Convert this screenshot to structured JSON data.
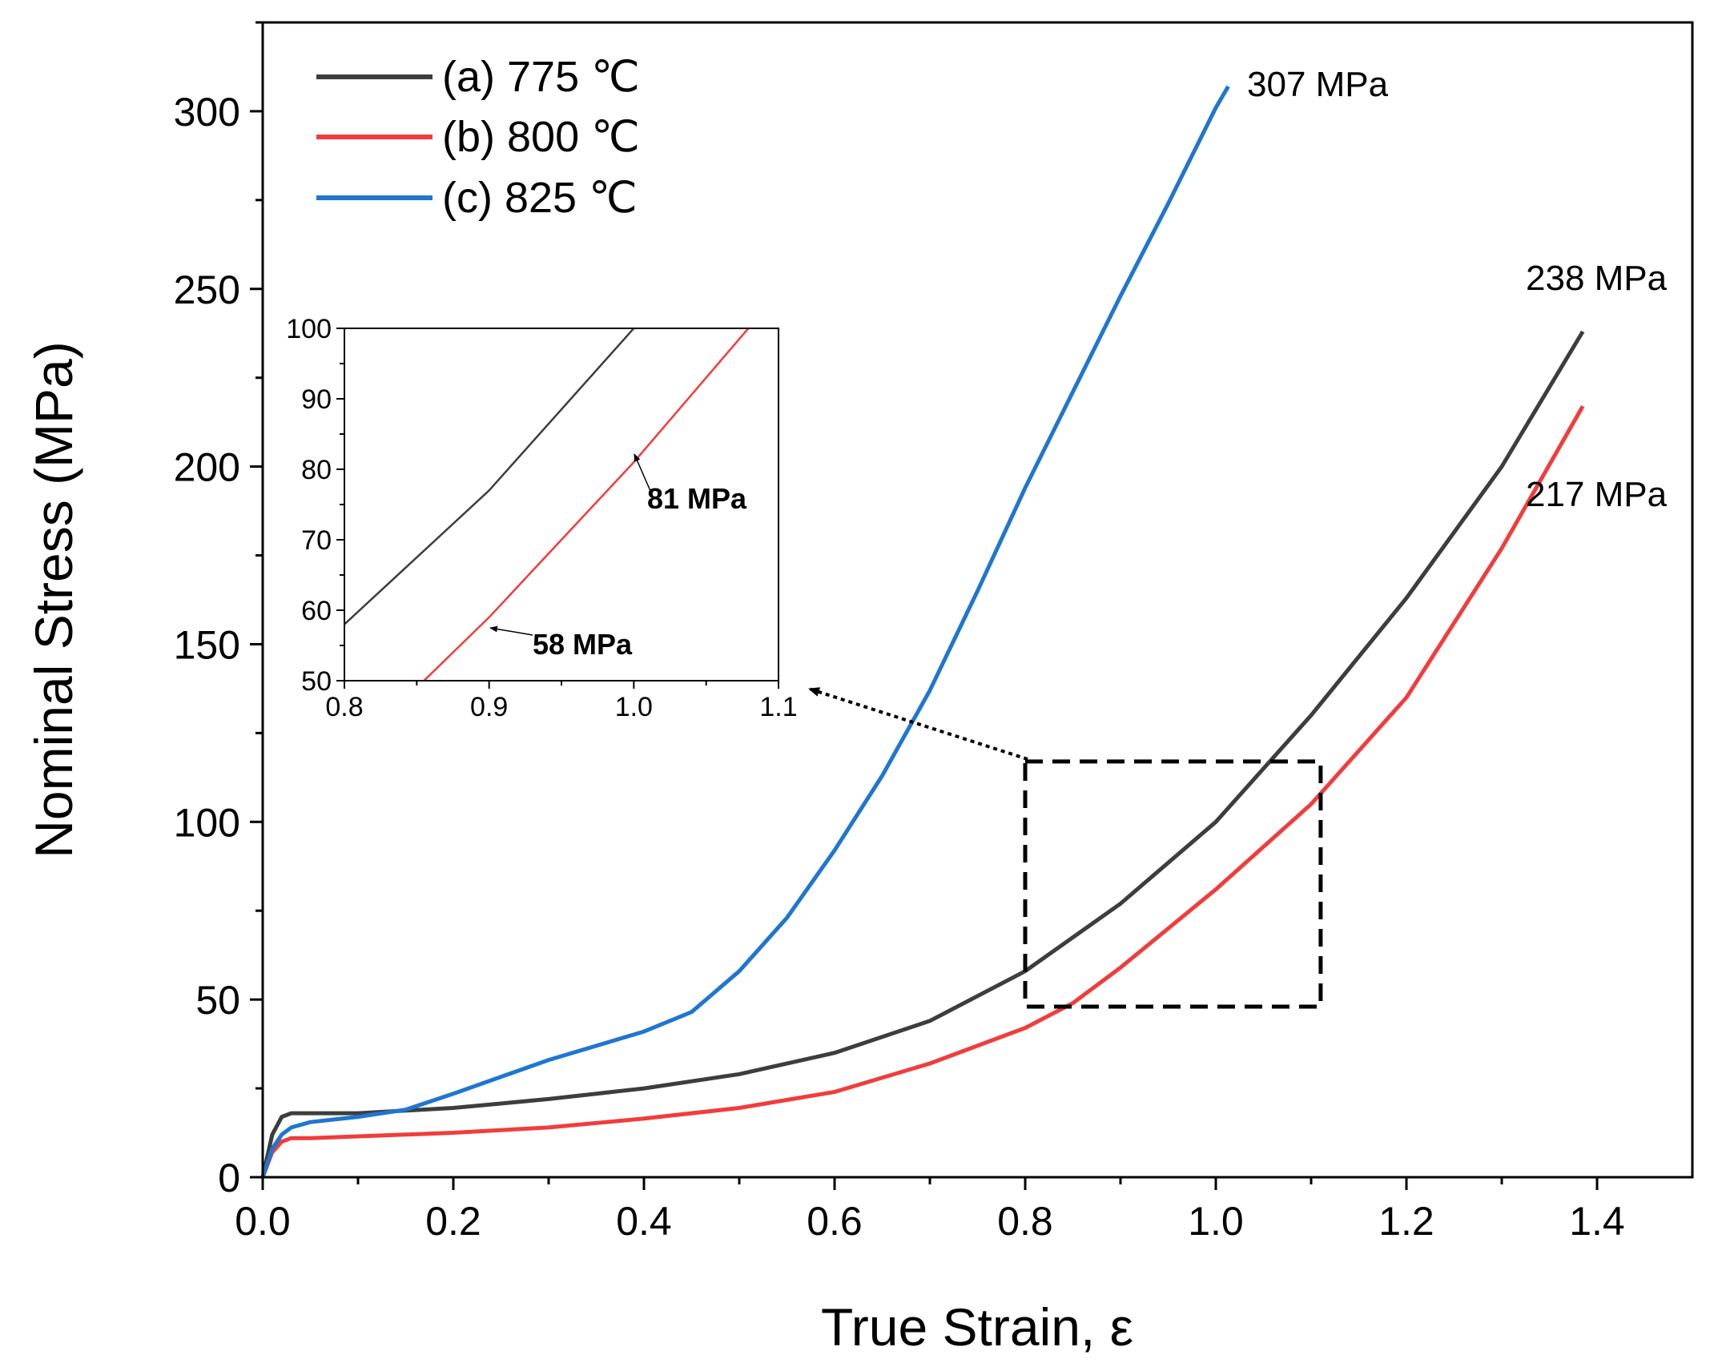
{
  "chart_data": {
    "type": "line",
    "xlabel": "True Strain, ε",
    "ylabel": "Nominal Stress (MPa)",
    "xlim": [
      0.0,
      1.5
    ],
    "ylim": [
      0,
      325
    ],
    "x_ticks": [
      "0.0",
      "0.2",
      "0.4",
      "0.6",
      "0.8",
      "1.0",
      "1.2",
      "1.4"
    ],
    "y_ticks": [
      "0",
      "50",
      "100",
      "150",
      "200",
      "250",
      "300"
    ],
    "legend_placement": "top-left",
    "grid": false,
    "series": [
      {
        "name": "(a) 775 ℃",
        "color": "#3d3d3d",
        "x": [
          0.0,
          0.01,
          0.02,
          0.03,
          0.05,
          0.1,
          0.2,
          0.3,
          0.4,
          0.5,
          0.6,
          0.7,
          0.8,
          0.9,
          1.0,
          1.1,
          1.2,
          1.3,
          1.385
        ],
        "y": [
          0,
          12,
          17,
          18,
          18,
          18,
          19.5,
          22,
          25,
          29,
          35,
          44,
          58,
          77,
          100,
          130,
          163,
          200,
          238
        ]
      },
      {
        "name": "(b) 800 ℃",
        "color": "#f23c3c",
        "x": [
          0.0,
          0.01,
          0.02,
          0.03,
          0.05,
          0.1,
          0.2,
          0.3,
          0.4,
          0.5,
          0.6,
          0.7,
          0.8,
          0.85,
          0.9,
          0.95,
          1.0,
          1.05,
          1.1,
          1.2,
          1.3,
          1.385
        ],
        "y": [
          0,
          7,
          10,
          11,
          11,
          11.5,
          12.5,
          14,
          16.5,
          19.5,
          24,
          32,
          42,
          49,
          59,
          70,
          81,
          93,
          105,
          135,
          177,
          217
        ]
      },
      {
        "name": "(c) 825 ℃",
        "color": "#1f76d1",
        "x": [
          0.0,
          0.01,
          0.02,
          0.03,
          0.05,
          0.1,
          0.15,
          0.2,
          0.3,
          0.4,
          0.45,
          0.5,
          0.55,
          0.6,
          0.65,
          0.7,
          0.75,
          0.8,
          0.85,
          0.9,
          0.95,
          1.0,
          1.013
        ],
        "y": [
          0,
          8,
          12,
          14,
          15.5,
          17,
          19,
          23.5,
          33,
          41,
          46.5,
          58,
          73,
          92,
          113,
          137,
          165,
          194,
          221,
          248,
          274,
          301,
          307
        ]
      }
    ],
    "annotations": [
      "307 MPa",
      "238 MPa",
      "217 MPa"
    ],
    "zoom_region": {
      "x": [
        0.8,
        1.11
      ],
      "y": [
        48,
        117
      ]
    },
    "inset": {
      "xlim": [
        0.8,
        1.1
      ],
      "ylim": [
        50,
        100
      ],
      "x_ticks": [
        "0.8",
        "0.9",
        "1.0",
        "1.1"
      ],
      "y_ticks": [
        "50",
        "60",
        "70",
        "80",
        "90",
        "100"
      ],
      "annotations": [
        {
          "label": "81 MPa",
          "x": 1.0,
          "y": 81
        },
        {
          "label": "58 MPa",
          "x": 0.89,
          "y": 57.5
        }
      ]
    }
  }
}
